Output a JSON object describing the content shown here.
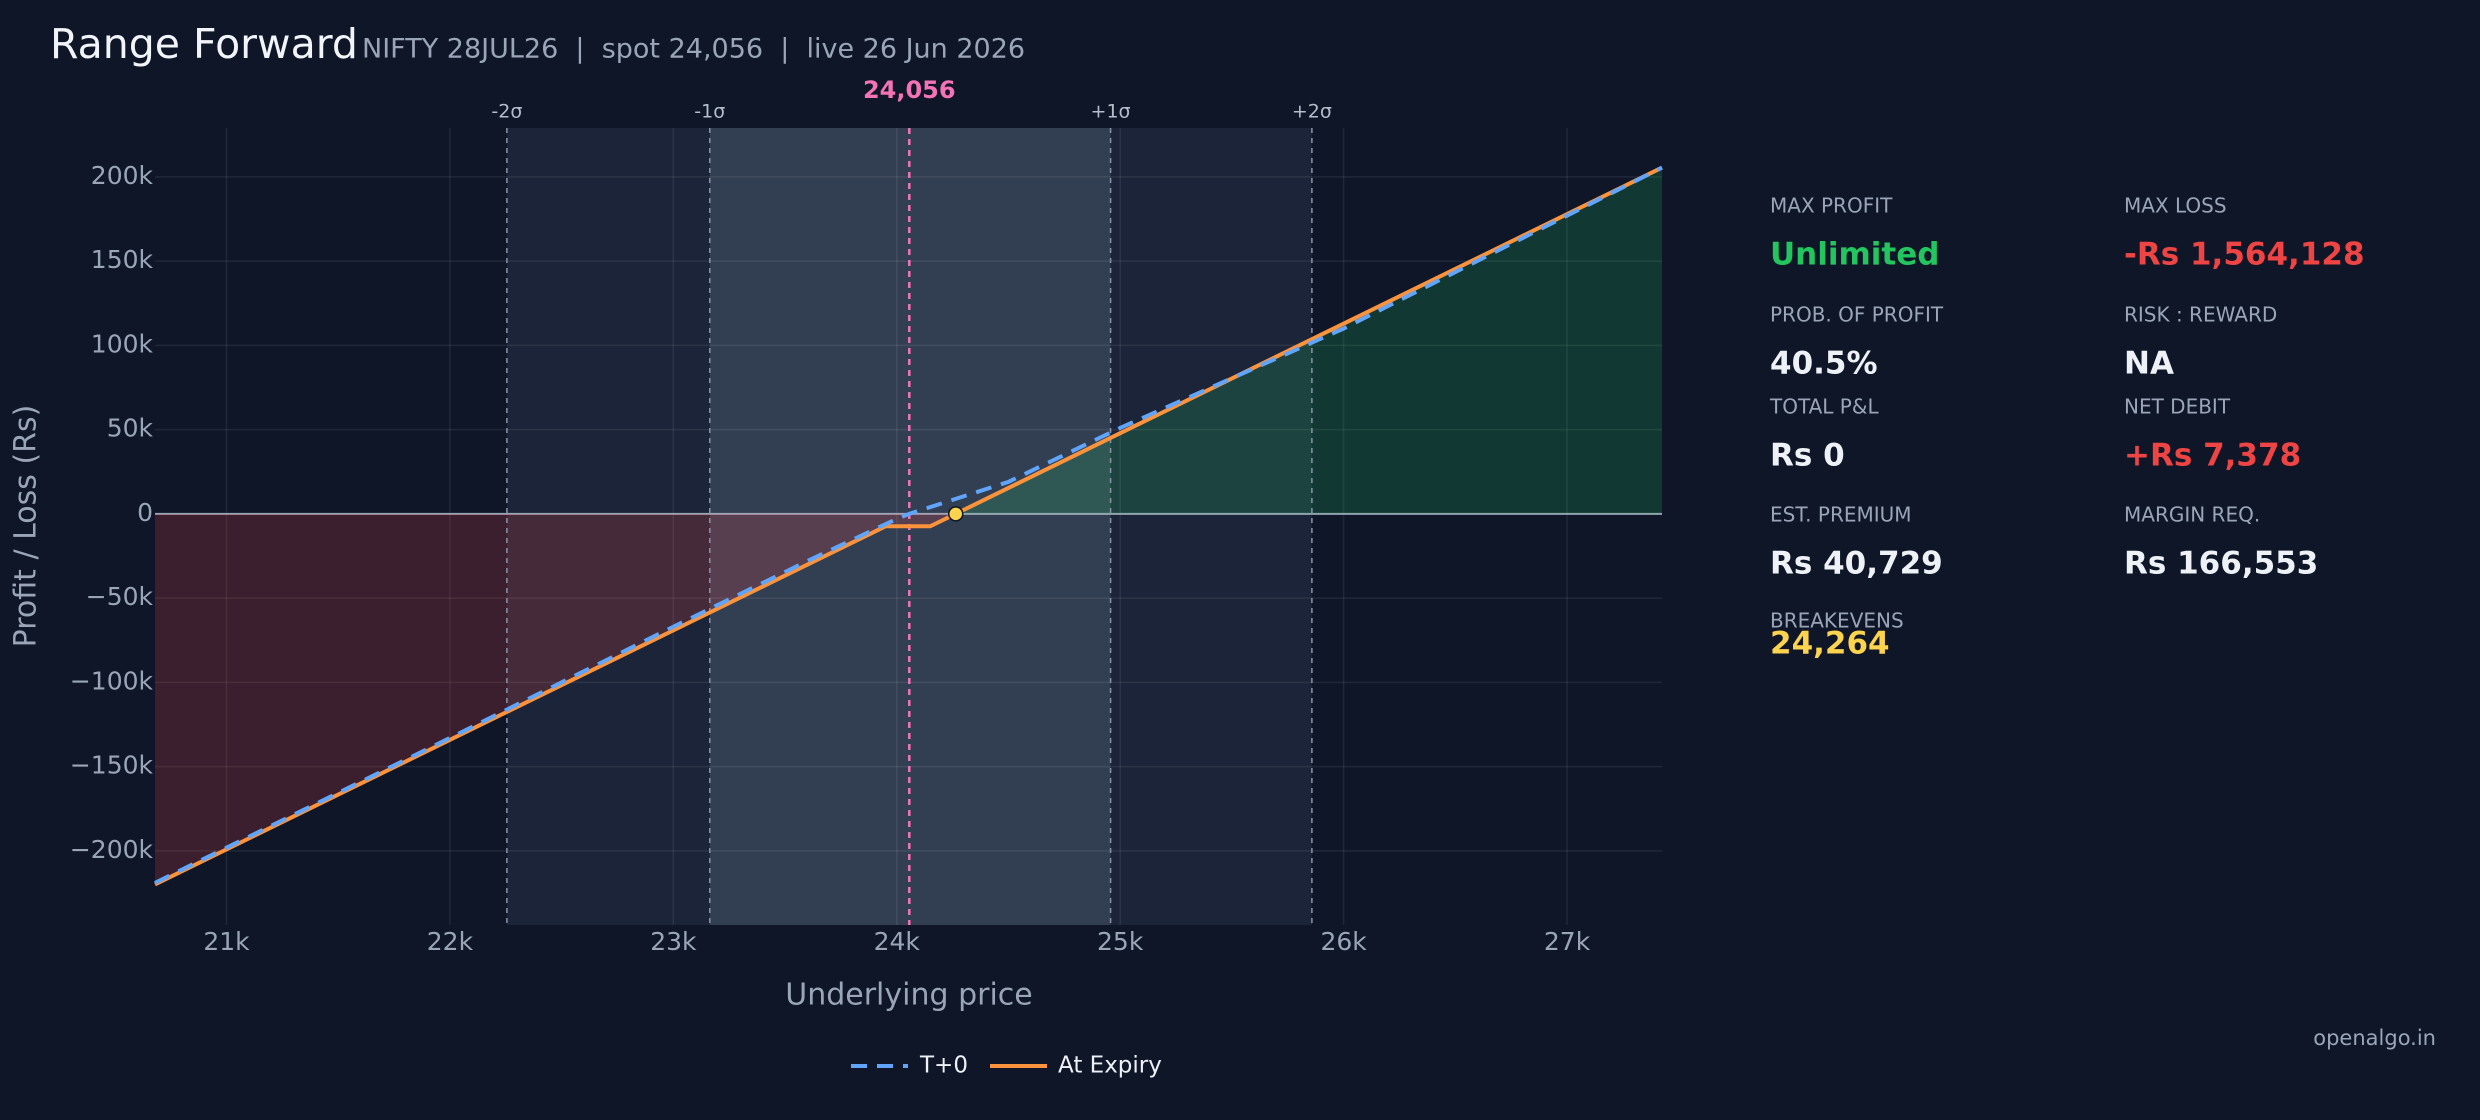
{
  "title": "Range Forward",
  "subtitle": "NIFTY 28JUL26  |  spot 24,056  |  live 26 Jun 2026",
  "chart_data": {
    "type": "line",
    "x_label": "Underlying price",
    "y_label": "Profit / Loss (Rs)",
    "xlim": [
      20680,
      27425
    ],
    "ylim": [
      -244000,
      229000
    ],
    "xticks": [
      {
        "value": 21000,
        "label": "21k"
      },
      {
        "value": 22000,
        "label": "22k"
      },
      {
        "value": 23000,
        "label": "23k"
      },
      {
        "value": 24000,
        "label": "24k"
      },
      {
        "value": 25000,
        "label": "25k"
      },
      {
        "value": 26000,
        "label": "26k"
      },
      {
        "value": 27000,
        "label": "27k"
      }
    ],
    "yticks": [
      {
        "value": -200000,
        "label": "−200k"
      },
      {
        "value": -150000,
        "label": "−150k"
      },
      {
        "value": -100000,
        "label": "−100k"
      },
      {
        "value": -50000,
        "label": "−50k"
      },
      0,
      {
        "value": 50000,
        "label": "50k"
      },
      {
        "value": 100000,
        "label": "100k"
      },
      {
        "value": 150000,
        "label": "150k"
      },
      {
        "value": 200000,
        "label": "200k"
      }
    ],
    "grid": true,
    "bands": [
      {
        "label": "-2σ",
        "value": 22255
      },
      {
        "label": "-1σ",
        "value": 23163
      },
      {
        "label": "+1σ",
        "value": 24957
      },
      {
        "label": "+2σ",
        "value": 25858
      }
    ],
    "spot": {
      "label": "24,056",
      "value": 24056
    },
    "breakeven_marker": 24264,
    "series": [
      {
        "name": "T+0",
        "color": "#60a5fa",
        "dash": true,
        "x": [
          20680,
          22000,
          23000,
          23600,
          24000,
          24056,
          24500,
          25000,
          26000,
          27425
        ],
        "values": [
          -219000,
          -133000,
          -67000,
          -28000,
          -3000,
          0,
          19000,
          51000,
          110000,
          205497
        ]
      },
      {
        "name": "At Expiry",
        "color": "#fb923c",
        "dash": false,
        "x": [
          20680,
          23950,
          24150,
          27425
        ],
        "values": [
          -219928,
          -7378,
          -7378,
          205497
        ]
      }
    ]
  },
  "stats": [
    {
      "label": "MAX PROFIT",
      "value": "Unlimited"
    },
    {
      "label": "MAX LOSS",
      "value": "-Rs 1,564,128"
    },
    {
      "label": "PROB. OF PROFIT",
      "value": "40.5%"
    },
    {
      "label": "RISK : REWARD",
      "value": "NA"
    },
    {
      "label": "TOTAL P&L",
      "value": "Rs 0"
    },
    {
      "label": "NET DEBIT",
      "value": "+Rs 7,378"
    },
    {
      "label": "EST. PREMIUM",
      "value": "Rs 40,729"
    },
    {
      "label": "MARGIN REQ.",
      "value": "Rs 166,553"
    },
    {
      "label": "BREAKEVENS",
      "value": "24,264"
    }
  ],
  "footer": "openalgo.in"
}
